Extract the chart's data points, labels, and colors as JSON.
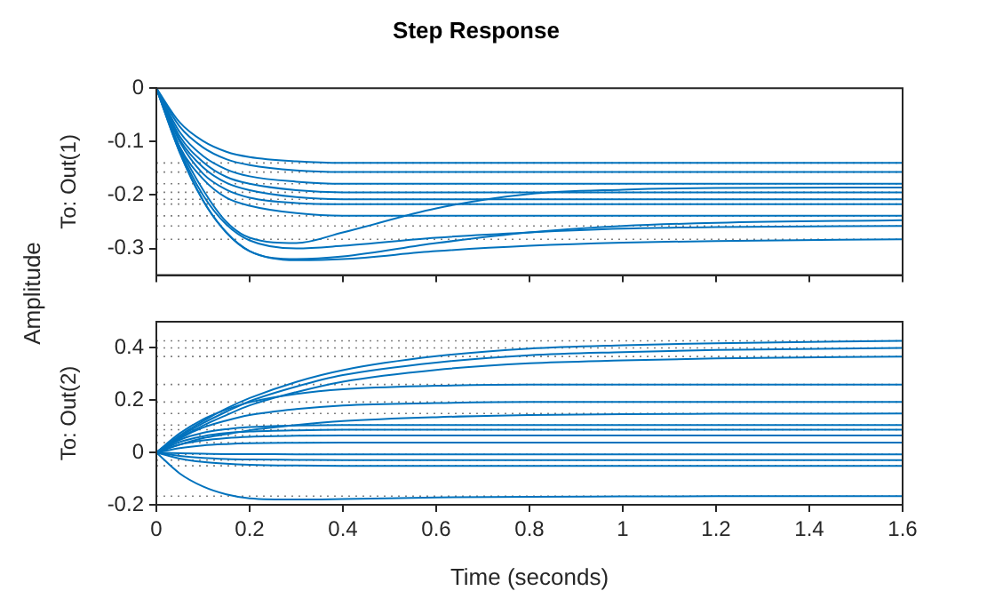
{
  "chart_data": [
    {
      "type": "line",
      "title": "Step Response",
      "ylabel": "To: Out(1)",
      "annotations": [
        "Amplitude"
      ],
      "tick_labels": "y",
      "grid": false,
      "legend": false,
      "marker": "none",
      "line_style": "solid",
      "x": [
        0,
        0.05,
        0.1,
        0.15,
        0.2,
        0.3,
        0.4,
        0.6,
        0.8,
        1.0,
        1.2,
        1.6
      ],
      "xlim": [
        0,
        1.6
      ],
      "xticks": [
        0,
        0.2,
        0.4,
        0.6,
        0.8,
        1,
        1.2,
        1.4,
        1.6
      ],
      "ylim": [
        -0.35,
        0
      ],
      "yticks": [
        {
          "value": -0.3,
          "label": "-0.3"
        },
        {
          "value": -0.2,
          "label": "-0.2"
        },
        {
          "value": -0.1,
          "label": "-0.1"
        },
        0
      ],
      "series": [
        {
          "color": "#0072bd",
          "values": [
            0,
            -0.064,
            -0.099,
            -0.119,
            -0.129,
            -0.137,
            -0.14,
            -0.14,
            -0.14,
            -0.14,
            -0.14,
            -0.14
          ]
        },
        {
          "color": "#0072bd",
          "values": [
            0,
            -0.072,
            -0.111,
            -0.133,
            -0.144,
            -0.154,
            -0.157,
            -0.157,
            -0.157,
            -0.157,
            -0.157,
            -0.157
          ]
        },
        {
          "color": "#0072bd",
          "values": [
            0,
            -0.082,
            -0.127,
            -0.152,
            -0.165,
            -0.175,
            -0.179,
            -0.179,
            -0.179,
            -0.179,
            -0.179,
            -0.179
          ]
        },
        {
          "color": "#0072bd",
          "values": [
            0,
            -0.09,
            -0.138,
            -0.166,
            -0.179,
            -0.191,
            -0.195,
            -0.195,
            -0.195,
            -0.195,
            -0.195,
            -0.195
          ]
        },
        {
          "color": "#0072bd",
          "values": [
            0,
            -0.096,
            -0.148,
            -0.177,
            -0.191,
            -0.204,
            -0.208,
            -0.208,
            -0.208,
            -0.208,
            -0.208,
            -0.208
          ]
        },
        {
          "color": "#0072bd",
          "values": [
            0,
            -0.1,
            -0.16,
            -0.19,
            -0.205,
            -0.215,
            -0.217,
            -0.217,
            -0.217,
            -0.217,
            -0.217,
            -0.217
          ]
        },
        {
          "color": "#0072bd",
          "values": [
            0,
            -0.11,
            -0.17,
            -0.205,
            -0.22,
            -0.234,
            -0.239,
            -0.239,
            -0.239,
            -0.239,
            -0.239,
            -0.239
          ]
        },
        {
          "color": "#0072bd",
          "values": [
            0,
            -0.11,
            -0.19,
            -0.25,
            -0.28,
            -0.29,
            -0.27,
            -0.225,
            -0.198,
            -0.19,
            -0.187,
            -0.186
          ]
        },
        {
          "color": "#0072bd",
          "values": [
            0,
            -0.12,
            -0.21,
            -0.27,
            -0.305,
            -0.32,
            -0.315,
            -0.29,
            -0.27,
            -0.258,
            -0.252,
            -0.247
          ]
        },
        {
          "color": "#0072bd",
          "values": [
            0,
            -0.115,
            -0.2,
            -0.255,
            -0.285,
            -0.3,
            -0.295,
            -0.28,
            -0.27,
            -0.263,
            -0.26,
            -0.258
          ]
        },
        {
          "color": "#0072bd",
          "values": [
            0,
            -0.12,
            -0.21,
            -0.27,
            -0.305,
            -0.322,
            -0.32,
            -0.305,
            -0.295,
            -0.289,
            -0.286,
            -0.283
          ]
        }
      ],
      "ref_lines": [
        {
          "axis": "y",
          "value": -0.14,
          "color": "#808080",
          "line_style": "dotted"
        },
        {
          "axis": "y",
          "value": -0.157,
          "color": "#808080",
          "line_style": "dotted"
        },
        {
          "axis": "y",
          "value": -0.179,
          "color": "#808080",
          "line_style": "dotted"
        },
        {
          "axis": "y",
          "value": -0.195,
          "color": "#808080",
          "line_style": "dotted"
        },
        {
          "axis": "y",
          "value": -0.208,
          "color": "#808080",
          "line_style": "dotted"
        },
        {
          "axis": "y",
          "value": -0.217,
          "color": "#808080",
          "line_style": "dotted"
        },
        {
          "axis": "y",
          "value": -0.239,
          "color": "#808080",
          "line_style": "dotted"
        },
        {
          "axis": "y",
          "value": -0.258,
          "color": "#808080",
          "line_style": "dotted"
        },
        {
          "axis": "y",
          "value": -0.283,
          "color": "#808080",
          "line_style": "dotted"
        }
      ]
    },
    {
      "type": "line",
      "xlabel": "Time (seconds)",
      "ylabel": "To: Out(2)",
      "grid": false,
      "legend": false,
      "marker": "none",
      "line_style": "solid",
      "x": [
        0,
        0.05,
        0.1,
        0.15,
        0.2,
        0.3,
        0.4,
        0.6,
        0.8,
        1.0,
        1.2,
        1.6
      ],
      "xlim": [
        0,
        1.6
      ],
      "xticks": [
        0,
        0.2,
        0.4,
        0.6,
        0.8,
        1,
        1.2,
        1.4,
        1.6
      ],
      "ylim": [
        -0.2,
        0.5
      ],
      "yticks": [
        {
          "value": -0.2,
          "label": "-0.2"
        },
        0,
        0.2,
        0.4
      ],
      "series": [
        {
          "color": "#0072bd",
          "values": [
            0,
            0.065,
            0.12,
            0.168,
            0.208,
            0.27,
            0.315,
            0.368,
            0.397,
            0.41,
            0.418,
            0.427
          ]
        },
        {
          "color": "#0072bd",
          "values": [
            0,
            0.06,
            0.112,
            0.156,
            0.196,
            0.252,
            0.296,
            0.344,
            0.372,
            0.384,
            0.392,
            0.4
          ]
        },
        {
          "color": "#0072bd",
          "values": [
            0,
            0.055,
            0.103,
            0.143,
            0.18,
            0.231,
            0.271,
            0.316,
            0.341,
            0.352,
            0.36,
            0.367
          ]
        },
        {
          "color": "#0072bd",
          "values": [
            0,
            0.073,
            0.127,
            0.164,
            0.192,
            0.224,
            0.242,
            0.255,
            0.26,
            0.26,
            0.26,
            0.26
          ]
        },
        {
          "color": "#0072bd",
          "values": [
            0,
            0.054,
            0.095,
            0.122,
            0.143,
            0.166,
            0.18,
            0.189,
            0.193,
            0.193,
            0.193,
            0.193
          ]
        },
        {
          "color": "#0072bd",
          "values": [
            0,
            0.03,
            0.055,
            0.07,
            0.085,
            0.105,
            0.12,
            0.135,
            0.143,
            0.147,
            0.148,
            0.149
          ]
        },
        {
          "color": "#0072bd",
          "values": [
            0,
            0.048,
            0.075,
            0.089,
            0.097,
            0.103,
            0.105,
            0.105,
            0.105,
            0.105,
            0.105,
            0.105
          ]
        },
        {
          "color": "#0072bd",
          "values": [
            0,
            0.04,
            0.062,
            0.074,
            0.08,
            0.085,
            0.087,
            0.087,
            0.087,
            0.087,
            0.087,
            0.087
          ]
        },
        {
          "color": "#0072bd",
          "values": [
            0,
            0.03,
            0.046,
            0.055,
            0.06,
            0.064,
            0.065,
            0.065,
            0.065,
            0.065,
            0.065,
            0.065
          ]
        },
        {
          "color": "#0072bd",
          "values": [
            0,
            0.017,
            0.027,
            0.032,
            0.035,
            0.037,
            0.038,
            0.038,
            0.038,
            0.038,
            0.038,
            0.038
          ]
        },
        {
          "color": "#0072bd",
          "values": [
            0,
            -0.003,
            -0.005,
            -0.006,
            -0.006,
            -0.007,
            -0.007,
            -0.007,
            -0.007,
            -0.007,
            -0.007,
            -0.007
          ]
        },
        {
          "color": "#0072bd",
          "values": [
            0,
            -0.013,
            -0.021,
            -0.025,
            -0.027,
            -0.028,
            -0.029,
            -0.029,
            -0.029,
            -0.029,
            -0.029,
            -0.029
          ]
        },
        {
          "color": "#0072bd",
          "values": [
            0,
            -0.023,
            -0.036,
            -0.043,
            -0.047,
            -0.05,
            -0.051,
            -0.051,
            -0.051,
            -0.051,
            -0.051,
            -0.051
          ]
        },
        {
          "color": "#0072bd",
          "values": [
            0,
            -0.08,
            -0.13,
            -0.16,
            -0.175,
            -0.18,
            -0.178,
            -0.172,
            -0.169,
            -0.168,
            -0.167,
            -0.167
          ]
        }
      ],
      "ref_lines": [
        {
          "axis": "y",
          "value": 0.427,
          "color": "#808080",
          "line_style": "dotted"
        },
        {
          "axis": "y",
          "value": 0.4,
          "color": "#808080",
          "line_style": "dotted"
        },
        {
          "axis": "y",
          "value": 0.367,
          "color": "#808080",
          "line_style": "dotted"
        },
        {
          "axis": "y",
          "value": 0.26,
          "color": "#808080",
          "line_style": "dotted"
        },
        {
          "axis": "y",
          "value": 0.193,
          "color": "#808080",
          "line_style": "dotted"
        },
        {
          "axis": "y",
          "value": 0.149,
          "color": "#808080",
          "line_style": "dotted"
        },
        {
          "axis": "y",
          "value": 0.105,
          "color": "#808080",
          "line_style": "dotted"
        },
        {
          "axis": "y",
          "value": 0.087,
          "color": "#808080",
          "line_style": "dotted"
        },
        {
          "axis": "y",
          "value": 0.065,
          "color": "#808080",
          "line_style": "dotted"
        },
        {
          "axis": "y",
          "value": 0.038,
          "color": "#808080",
          "line_style": "dotted"
        },
        {
          "axis": "y",
          "value": -0.007,
          "color": "#808080",
          "line_style": "dotted"
        },
        {
          "axis": "y",
          "value": -0.029,
          "color": "#808080",
          "line_style": "dotted"
        },
        {
          "axis": "y",
          "value": -0.051,
          "color": "#808080",
          "line_style": "dotted"
        },
        {
          "axis": "y",
          "value": -0.167,
          "color": "#808080",
          "line_style": "dotted"
        }
      ]
    }
  ]
}
